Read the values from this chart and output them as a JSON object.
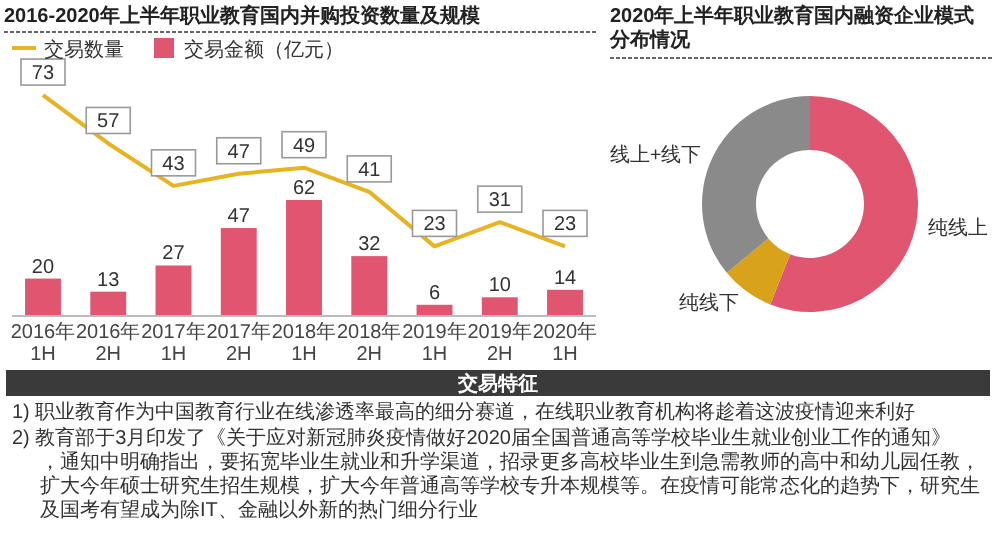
{
  "chart_data": [
    {
      "type": "bar",
      "title": "2016-2020年上半年职业教育国内并购投资数量及规模",
      "categories": [
        "2016年1H",
        "2016年2H",
        "2017年1H",
        "2017年2H",
        "2018年1H",
        "2018年2H",
        "2019年1H",
        "2019年2H",
        "2020年1H"
      ],
      "series": [
        {
          "type": "bar",
          "name": "交易金额（亿元）",
          "color": "#e05570",
          "values": [
            20,
            13,
            27,
            47,
            62,
            32,
            6,
            10,
            14
          ]
        },
        {
          "type": "line",
          "name": "交易数量",
          "color": "#e6b422",
          "axis": "y2",
          "values": [
            73,
            57,
            43,
            47,
            49,
            41,
            23,
            31,
            23
          ]
        }
      ],
      "data_labels": true,
      "legend": "top left"
    },
    {
      "type": "donut",
      "title": "2020年上半年职业教育国内融资企业模式分布情况",
      "categories": [
        "纯线上",
        "纯线下",
        "线上+线下"
      ],
      "values": [
        56,
        8,
        36
      ],
      "colors": [
        "#e05570",
        "#d9a21b",
        "#8a8a8a"
      ]
    },
    {
      "type": "other",
      "title": "交易特征",
      "annotations": [
        "1)  职业教育作为中国教育行业在线渗透率最高的细分赛道，在线职业教育机构将趁着这波疫情迎来利好",
        "2)  教育部于3月印发了《关于应对新冠肺炎疫情做好2020届全国普通高等学校毕业生就业创业工作的通知》，通知中明确指出，要拓宽毕业生就业和升学渠道，招录更多高校毕业生到急需教师的高中和幼儿园任教，扩大今年硕士研究生招生规模，扩大今年普通高等学校专升本规模等。在疫情可能常态化的趋势下，研究生及国考有望成为除IT、金融以外新的热门细分行业"
      ]
    }
  ]
}
